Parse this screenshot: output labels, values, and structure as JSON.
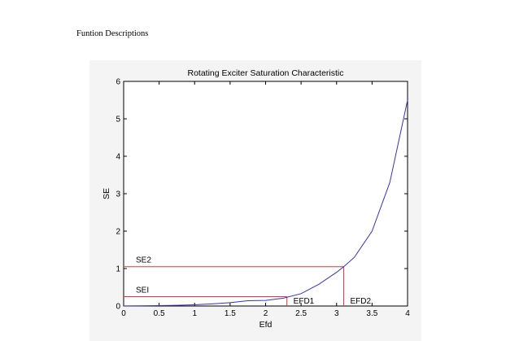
{
  "page": {
    "heading": "Funtion Descriptions"
  },
  "chart_data": {
    "type": "line",
    "title": "Rotating Exciter Saturation Characteristic",
    "xlabel": "Efd",
    "ylabel": "SE",
    "xlim": [
      0,
      4
    ],
    "ylim": [
      0,
      6
    ],
    "xticks": [
      0,
      0.5,
      1,
      1.5,
      2,
      2.5,
      3,
      3.5,
      4
    ],
    "xtick_labels": [
      "0",
      "0.5",
      "1",
      "1.5",
      "2",
      "2.5",
      "3",
      "3.5",
      "4"
    ],
    "yticks": [
      0,
      1,
      2,
      3,
      4,
      5,
      6
    ],
    "ytick_labels": [
      "0",
      "1",
      "2",
      "3",
      "4",
      "5",
      "6"
    ],
    "grid": false,
    "legend": "none",
    "series": [
      {
        "x": [
          0,
          0.25,
          0.5,
          0.75,
          1,
          1.25,
          1.5,
          1.75,
          2,
          2.25,
          2.5,
          2.75,
          3,
          3.1,
          3.25,
          3.5,
          3.75,
          4
        ],
        "y": [
          0.003,
          0.006,
          0.011,
          0.019,
          0.034,
          0.057,
          0.09,
          0.14,
          0.15,
          0.21,
          0.33,
          0.58,
          0.9,
          1.05,
          1.3,
          2.0,
          3.3,
          5.5
        ],
        "color": "#3333cc"
      }
    ],
    "markers": [
      {
        "label": "EFD1",
        "x": 2.3,
        "y": 0.25,
        "ylabel": "SEI"
      },
      {
        "label": "EFD2",
        "x": 3.1,
        "y": 1.05,
        "ylabel": "SE2"
      }
    ],
    "marker_color": "#d93a3a",
    "axis_color": "#000000"
  }
}
